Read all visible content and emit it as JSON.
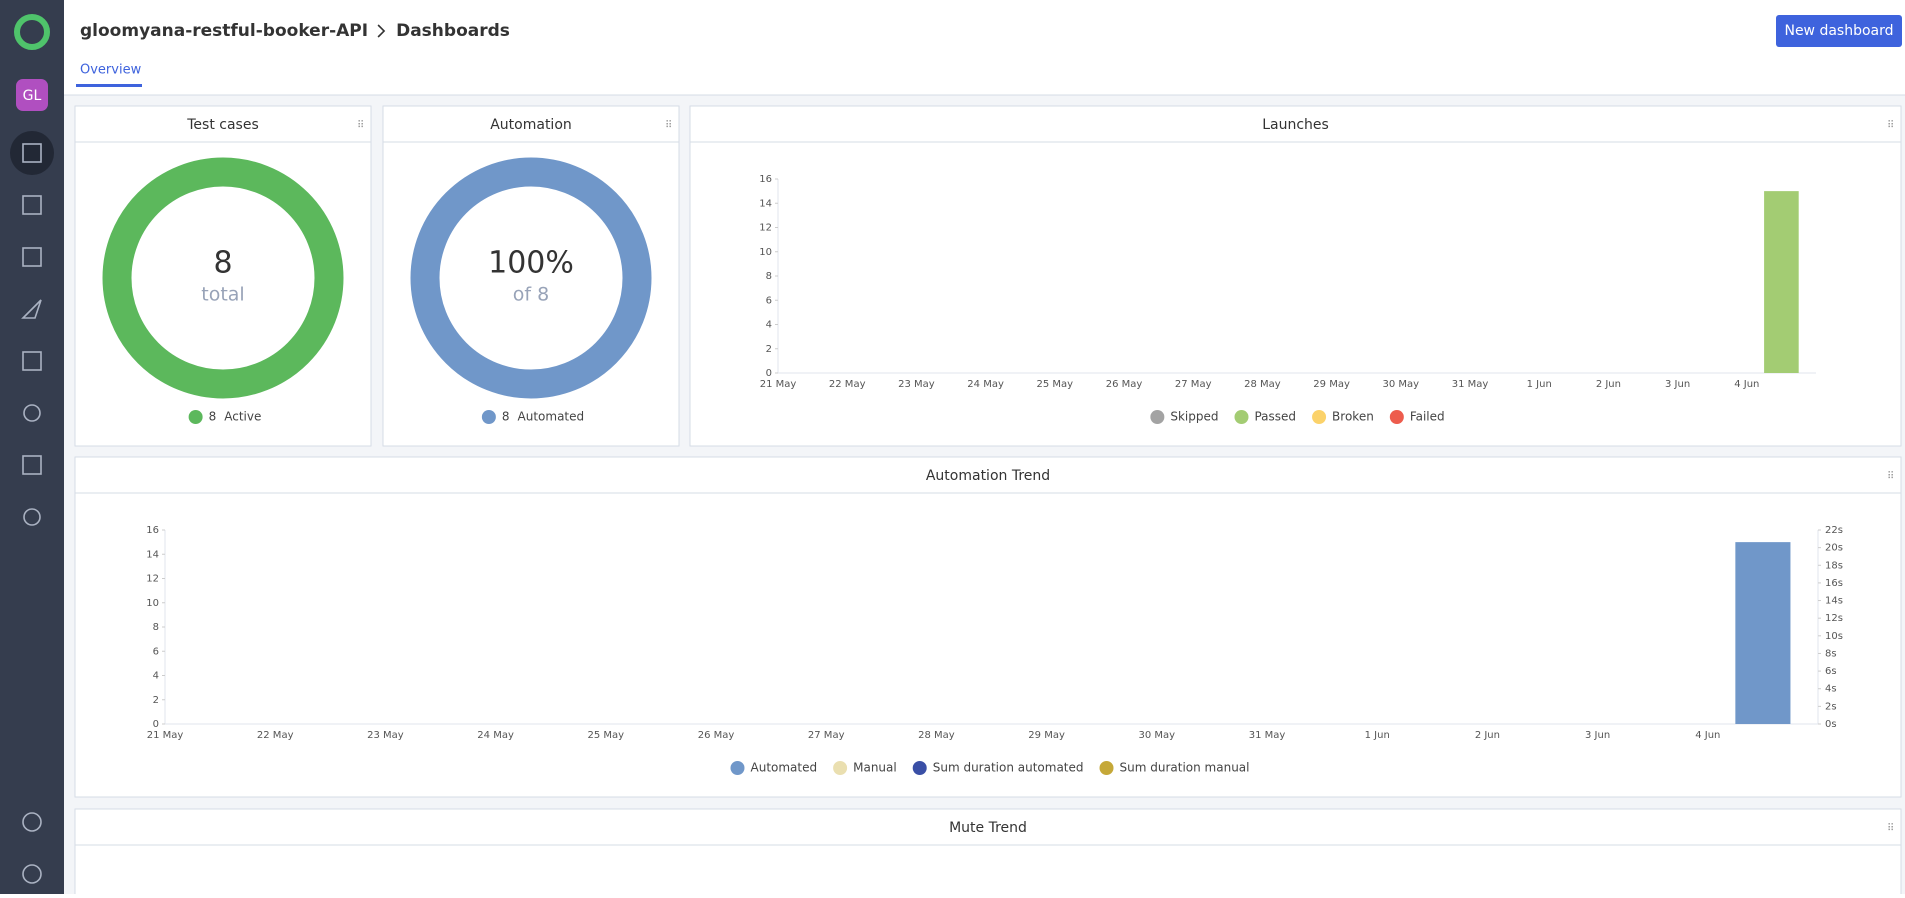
{
  "header": {
    "project": "gloomyana-restful-booker-API",
    "page": "Dashboards",
    "button": "New dashboard",
    "avatar": "GL"
  },
  "tabs": [
    "Overview"
  ],
  "chart_data": [
    {
      "type": "pie",
      "title": "Test cases",
      "center_sublabel": "total",
      "categories": [
        "Active"
      ],
      "values": [
        8
      ],
      "colors": [
        "#5cb85c"
      ]
    },
    {
      "type": "pie",
      "title": "Automation",
      "center_label": "100%",
      "center_sublabel": "of 8",
      "categories": [
        "Automated"
      ],
      "values": [
        8
      ],
      "colors": [
        "#7097c9"
      ]
    },
    {
      "type": "bar",
      "title": "Launches",
      "categories": [
        "21 May",
        "22 May",
        "23 May",
        "24 May",
        "25 May",
        "26 May",
        "27 May",
        "28 May",
        "29 May",
        "30 May",
        "31 May",
        "1 Jun",
        "2 Jun",
        "3 Jun",
        "4 Jun"
      ],
      "ylim": [
        0,
        16
      ],
      "yticks": [
        0,
        2,
        4,
        6,
        8,
        10,
        12,
        14,
        16
      ],
      "series": [
        {
          "name": "Skipped",
          "color": "#a3a3a3",
          "values": [
            0,
            0,
            0,
            0,
            0,
            0,
            0,
            0,
            0,
            0,
            0,
            0,
            0,
            0,
            0
          ]
        },
        {
          "name": "Passed",
          "color": "#a3cc73",
          "values": [
            0,
            0,
            0,
            0,
            0,
            0,
            0,
            0,
            0,
            0,
            0,
            0,
            0,
            0,
            15
          ]
        },
        {
          "name": "Broken",
          "color": "#fbd26a",
          "values": [
            0,
            0,
            0,
            0,
            0,
            0,
            0,
            0,
            0,
            0,
            0,
            0,
            0,
            0,
            0
          ]
        },
        {
          "name": "Failed",
          "color": "#ed5c4d",
          "values": [
            0,
            0,
            0,
            0,
            0,
            0,
            0,
            0,
            0,
            0,
            0,
            0,
            0,
            0,
            0
          ]
        }
      ]
    },
    {
      "type": "bar",
      "title": "Automation Trend",
      "categories": [
        "21 May",
        "22 May",
        "23 May",
        "24 May",
        "25 May",
        "26 May",
        "27 May",
        "28 May",
        "29 May",
        "30 May",
        "31 May",
        "1 Jun",
        "2 Jun",
        "3 Jun",
        "4 Jun"
      ],
      "ylim": [
        0,
        16
      ],
      "yticks": [
        0,
        2,
        4,
        6,
        8,
        10,
        12,
        14,
        16
      ],
      "y2lim": [
        0,
        22
      ],
      "y2ticks": [
        {
          "value": 0,
          "label": "0s"
        },
        {
          "value": 2,
          "label": "2s"
        },
        {
          "value": 4,
          "label": "4s"
        },
        {
          "value": 6,
          "label": "6s"
        },
        {
          "value": 8,
          "label": "8s"
        },
        {
          "value": 10,
          "label": "10s"
        },
        {
          "value": 12,
          "label": "12s"
        },
        {
          "value": 14,
          "label": "14s"
        },
        {
          "value": 16,
          "label": "16s"
        },
        {
          "value": 18,
          "label": "18s"
        },
        {
          "value": 20,
          "label": "20s"
        },
        {
          "value": 22,
          "label": "22s"
        }
      ],
      "series": [
        {
          "name": "Automated",
          "color": "#7097c9",
          "values": [
            0,
            0,
            0,
            0,
            0,
            0,
            0,
            0,
            0,
            0,
            0,
            0,
            0,
            0,
            15
          ]
        },
        {
          "name": "Manual",
          "color": "#eadfb0",
          "values": [
            0,
            0,
            0,
            0,
            0,
            0,
            0,
            0,
            0,
            0,
            0,
            0,
            0,
            0,
            0
          ]
        },
        {
          "name": "Sum duration automated",
          "color": "#3a4fa6",
          "axis": "y2",
          "values": [
            0,
            0,
            0,
            0,
            0,
            0,
            0,
            0,
            0,
            0,
            0,
            0,
            0,
            0,
            0
          ]
        },
        {
          "name": "Sum duration manual",
          "color": "#c5a838",
          "axis": "y2",
          "values": [
            0,
            0,
            0,
            0,
            0,
            0,
            0,
            0,
            0,
            0,
            0,
            0,
            0,
            0,
            0
          ]
        }
      ]
    },
    {
      "type": "line",
      "title": "Mute Trend"
    }
  ]
}
